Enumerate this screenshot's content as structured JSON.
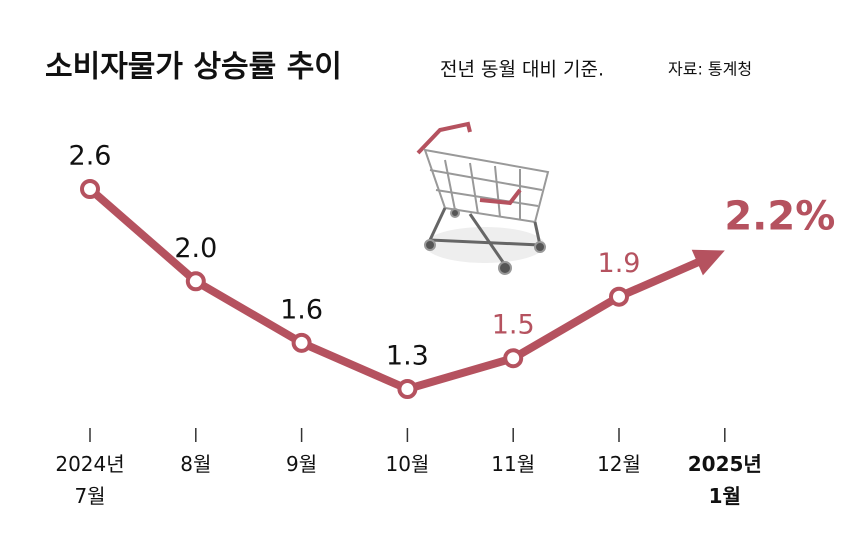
{
  "chart_data": {
    "type": "line",
    "title": "소비자물가 상승률 추이",
    "subtitle": "전년 동월 대비 기준.",
    "source": "자료: 통계청",
    "categories": [
      "2024년\n7월",
      "8월",
      "9월",
      "10월",
      "11월",
      "12월",
      "2025년\n1월"
    ],
    "values": [
      2.6,
      2.0,
      1.6,
      1.3,
      1.5,
      1.9,
      2.2
    ],
    "value_labels": [
      "2.6",
      "2.0",
      "1.6",
      "1.3",
      "1.5",
      "1.9",
      "2.2%"
    ],
    "color": "#b5525f"
  }
}
